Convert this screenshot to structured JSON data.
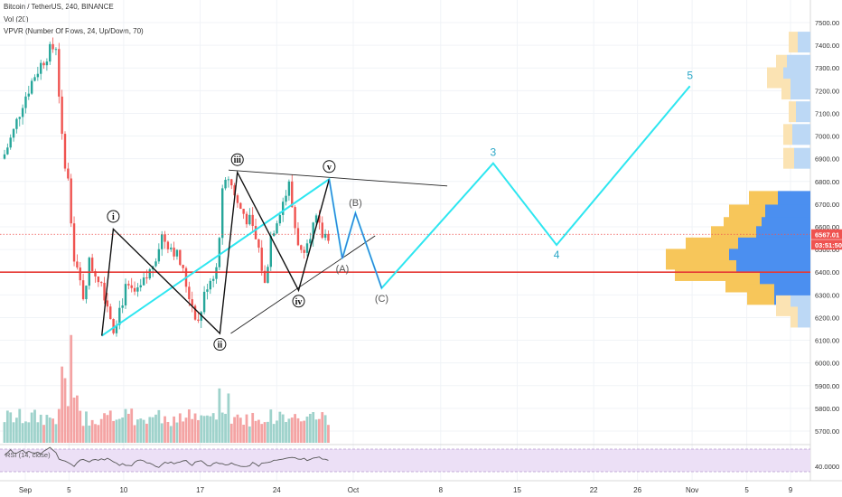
{
  "header": {
    "symbol": "Bitcoin / TetherUS, 240, BINANCE",
    "vol": "Vol (20)",
    "vpvr": "VPVR (Number Of Rows, 24, Up/Down, 70)"
  },
  "rsi": {
    "label": "RSI (14, close)",
    "value_label": "40.0000"
  },
  "colors": {
    "up": "#26a69a",
    "down": "#ef5350",
    "vol_up": "#9ed2cb",
    "vol_down": "#f4a3a3",
    "wave": "#2ee6f0",
    "support": "#e53935",
    "rsi_line": "#555555",
    "rsi_band": "#ece0f6"
  },
  "chart_data": {
    "type": "candlestick",
    "y_ticks": [
      "7500.00",
      "7400.00",
      "7300.00",
      "7200.00",
      "7100.00",
      "7000.00",
      "6900.00",
      "6800.00",
      "6700.00",
      "6600.00",
      "6500.00",
      "6400.00",
      "6300.00",
      "6200.00",
      "6100.00",
      "6000.00",
      "5900.00",
      "5800.00",
      "5700.00"
    ],
    "x_ticks": [
      "Sep",
      "5",
      "10",
      "17",
      "24",
      "Oct",
      "8",
      "15",
      "22",
      "26",
      "Nov",
      "5",
      "9"
    ],
    "last_price": "6567.01",
    "countdown": "03:51:50",
    "support_price": 6400,
    "close_path": [
      {
        "i": 0,
        "c": 6920
      },
      {
        "i": 3,
        "c": 7020
      },
      {
        "i": 6,
        "c": 7150
      },
      {
        "i": 10,
        "c": 7270
      },
      {
        "i": 14,
        "c": 7360
      },
      {
        "i": 17,
        "c": 7400
      },
      {
        "i": 19,
        "c": 6980
      },
      {
        "i": 21,
        "c": 6800
      },
      {
        "i": 23,
        "c": 6450
      },
      {
        "i": 26,
        "c": 6300
      },
      {
        "i": 28,
        "c": 6440
      },
      {
        "i": 32,
        "c": 6360
      },
      {
        "i": 36,
        "c": 6160
      },
      {
        "i": 40,
        "c": 6320
      },
      {
        "i": 44,
        "c": 6300
      },
      {
        "i": 48,
        "c": 6400
      },
      {
        "i": 52,
        "c": 6560
      },
      {
        "i": 56,
        "c": 6500
      },
      {
        "i": 58,
        "c": 6440
      },
      {
        "i": 61,
        "c": 6300
      },
      {
        "i": 64,
        "c": 6180
      },
      {
        "i": 67,
        "c": 6350
      },
      {
        "i": 70,
        "c": 6420
      },
      {
        "i": 72,
        "c": 6740
      },
      {
        "i": 74,
        "c": 6820
      },
      {
        "i": 77,
        "c": 6700
      },
      {
        "i": 81,
        "c": 6620
      },
      {
        "i": 84,
        "c": 6500
      },
      {
        "i": 86,
        "c": 6340
      },
      {
        "i": 88,
        "c": 6560
      },
      {
        "i": 91,
        "c": 6680
      },
      {
        "i": 94,
        "c": 6780
      },
      {
        "i": 96,
        "c": 6600
      },
      {
        "i": 98,
        "c": 6480
      },
      {
        "i": 100,
        "c": 6560
      },
      {
        "i": 103,
        "c": 6620
      },
      {
        "i": 105,
        "c": 6560
      },
      {
        "i": 107,
        "c": 6567
      }
    ],
    "waves": {
      "primary": [
        {
          "label": "i",
          "d": 9.05,
          "p": 6590
        },
        {
          "label": "ii",
          "d": 18.8,
          "p": 6130
        },
        {
          "label": "iii",
          "d": 20.4,
          "p": 6840
        },
        {
          "label": "iv",
          "d": 26.0,
          "p": 6320
        },
        {
          "label": "v",
          "d": 28.8,
          "p": 6810
        }
      ],
      "projection": [
        {
          "label": "",
          "d": 8.0,
          "p": 6120
        },
        {
          "label": "",
          "d": 28.8,
          "p": 6810
        },
        {
          "label": "(A)",
          "d": 30.0,
          "p": 6460
        },
        {
          "label": "(B)",
          "d": 31.2,
          "p": 6660
        },
        {
          "label": "(C)",
          "d": 33.6,
          "p": 6330
        },
        {
          "label": "3",
          "d": 43.8,
          "p": 6880
        },
        {
          "label": "4",
          "d": 49.6,
          "p": 6520
        },
        {
          "label": "5",
          "d": 61.8,
          "p": 7220
        }
      ]
    },
    "triangle": {
      "upper": [
        {
          "d": 19.6,
          "p": 6850
        },
        {
          "d": 39.6,
          "p": 6780
        }
      ],
      "lower": [
        {
          "d": 19.8,
          "p": 6130
        },
        {
          "d": 33.0,
          "p": 6560
        }
      ]
    },
    "vpvr_rows": [
      {
        "p": 7412,
        "up": 10,
        "dn": 14
      },
      {
        "p": 7310,
        "up": 12,
        "dn": 26
      },
      {
        "p": 7255,
        "up": 18,
        "dn": 30
      },
      {
        "p": 7205,
        "up": 10,
        "dn": 22
      },
      {
        "p": 7105,
        "up": 8,
        "dn": 16
      },
      {
        "p": 7005,
        "up": 10,
        "dn": 20
      },
      {
        "p": 6900,
        "up": 12,
        "dn": 18
      },
      {
        "p": 6710,
        "up": 32,
        "dn": 36
      },
      {
        "p": 6650,
        "up": 40,
        "dn": 50
      },
      {
        "p": 6595,
        "up": 42,
        "dn": 54
      },
      {
        "p": 6555,
        "up": 50,
        "dn": 60
      },
      {
        "p": 6505,
        "up": 58,
        "dn": 80
      },
      {
        "p": 6455,
        "up": 70,
        "dn": 90
      },
      {
        "p": 6405,
        "up": 68,
        "dn": 82
      },
      {
        "p": 6355,
        "up": 38,
        "dn": 56
      },
      {
        "p": 6300,
        "up": 30,
        "dn": 40
      },
      {
        "p": 6250,
        "up": 16,
        "dn": 22
      },
      {
        "p": 6200,
        "up": 8,
        "dn": 14
      }
    ]
  }
}
